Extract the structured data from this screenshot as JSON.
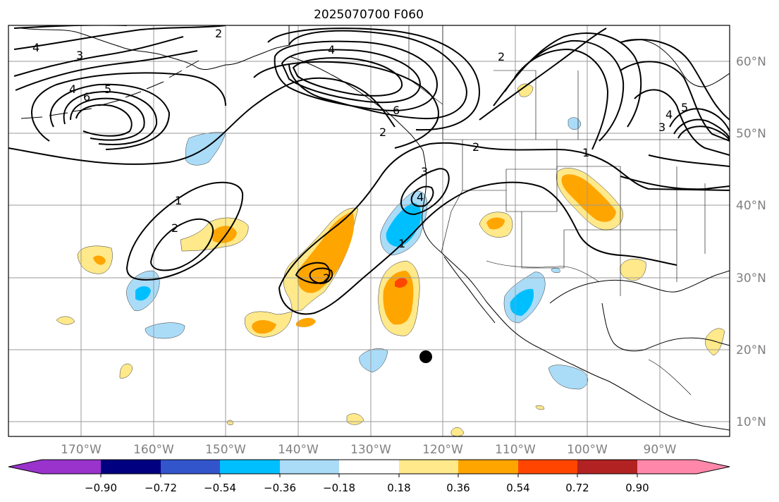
{
  "title": "2025070700 F060",
  "map": {
    "lon_labels": [
      "170°W",
      "160°W",
      "150°W",
      "140°W",
      "130°W",
      "120°W",
      "110°W",
      "100°W",
      "90°W"
    ],
    "lat_labels": [
      "60°N",
      "50°N",
      "40°N",
      "30°N",
      "20°N",
      "10°N"
    ],
    "contour_labels": [
      "4",
      "3",
      "2",
      "4",
      "5",
      "6",
      "4",
      "6",
      "2",
      "2",
      "3",
      "4",
      "1",
      "2",
      "1",
      "2",
      "1",
      "2",
      "3",
      "4",
      "5"
    ],
    "marker": "storm-center-dot"
  },
  "colorbar": {
    "ticks": [
      "−0.90",
      "−0.72",
      "−0.54",
      "−0.36",
      "−0.18",
      "0.18",
      "0.36",
      "0.54",
      "0.72",
      "0.90"
    ],
    "colors": [
      "#9933cc",
      "#000080",
      "#3355cc",
      "#00bfff",
      "#aadcf8",
      "#ffffff",
      "#ffe98a",
      "#ffa500",
      "#ff4500",
      "#b22222",
      "#ff88aa"
    ]
  }
}
